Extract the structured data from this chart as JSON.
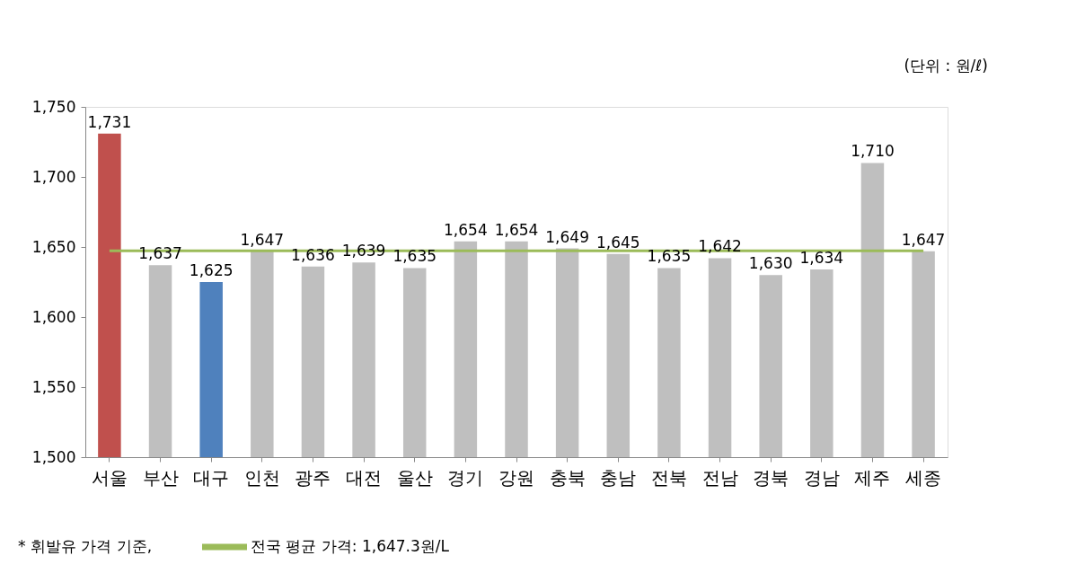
{
  "chart_data": {
    "type": "bar",
    "categories": [
      "서울",
      "부산",
      "대구",
      "인천",
      "광주",
      "대전",
      "울산",
      "경기",
      "강원",
      "충북",
      "충남",
      "전북",
      "전남",
      "경북",
      "경남",
      "제주",
      "세종"
    ],
    "values": [
      1731,
      1637,
      1625,
      1647,
      1636,
      1639,
      1635,
      1654,
      1654,
      1649,
      1645,
      1635,
      1642,
      1630,
      1634,
      1710,
      1647
    ],
    "colors": [
      "#c0504d",
      "#bfbfbf",
      "#4f81bd",
      "#bfbfbf",
      "#bfbfbf",
      "#bfbfbf",
      "#bfbfbf",
      "#bfbfbf",
      "#bfbfbf",
      "#bfbfbf",
      "#bfbfbf",
      "#bfbfbf",
      "#bfbfbf",
      "#bfbfbf",
      "#bfbfbf",
      "#bfbfbf",
      "#bfbfbf"
    ],
    "ylim": [
      1500,
      1750
    ],
    "yticks": [
      {
        "value": 1500,
        "label": "1,500"
      },
      {
        "value": 1550,
        "label": "1,550"
      },
      {
        "value": 1600,
        "label": "1,600"
      },
      {
        "value": 1650,
        "label": "1,650"
      },
      {
        "value": 1700,
        "label": "1,700"
      },
      {
        "value": 1750,
        "label": "1,750"
      }
    ],
    "value_labels": [
      "1,731",
      "1,637",
      "1,625",
      "1,647",
      "1,636",
      "1,639",
      "1,635",
      "1,654",
      "1,654",
      "1,649",
      "1,645",
      "1,635",
      "1,642",
      "1,630",
      "1,634",
      "1,710",
      "1,647"
    ],
    "grid": false,
    "ref_lines": [
      {
        "axis": "y",
        "value": 1647.3,
        "label": "전국 평균 가격: 1,647.3원/L",
        "color": "#9bbb59"
      }
    ],
    "annotations": [
      "(단위 : 원/ℓ)",
      "* 휘발유 가격 기준,"
    ]
  }
}
